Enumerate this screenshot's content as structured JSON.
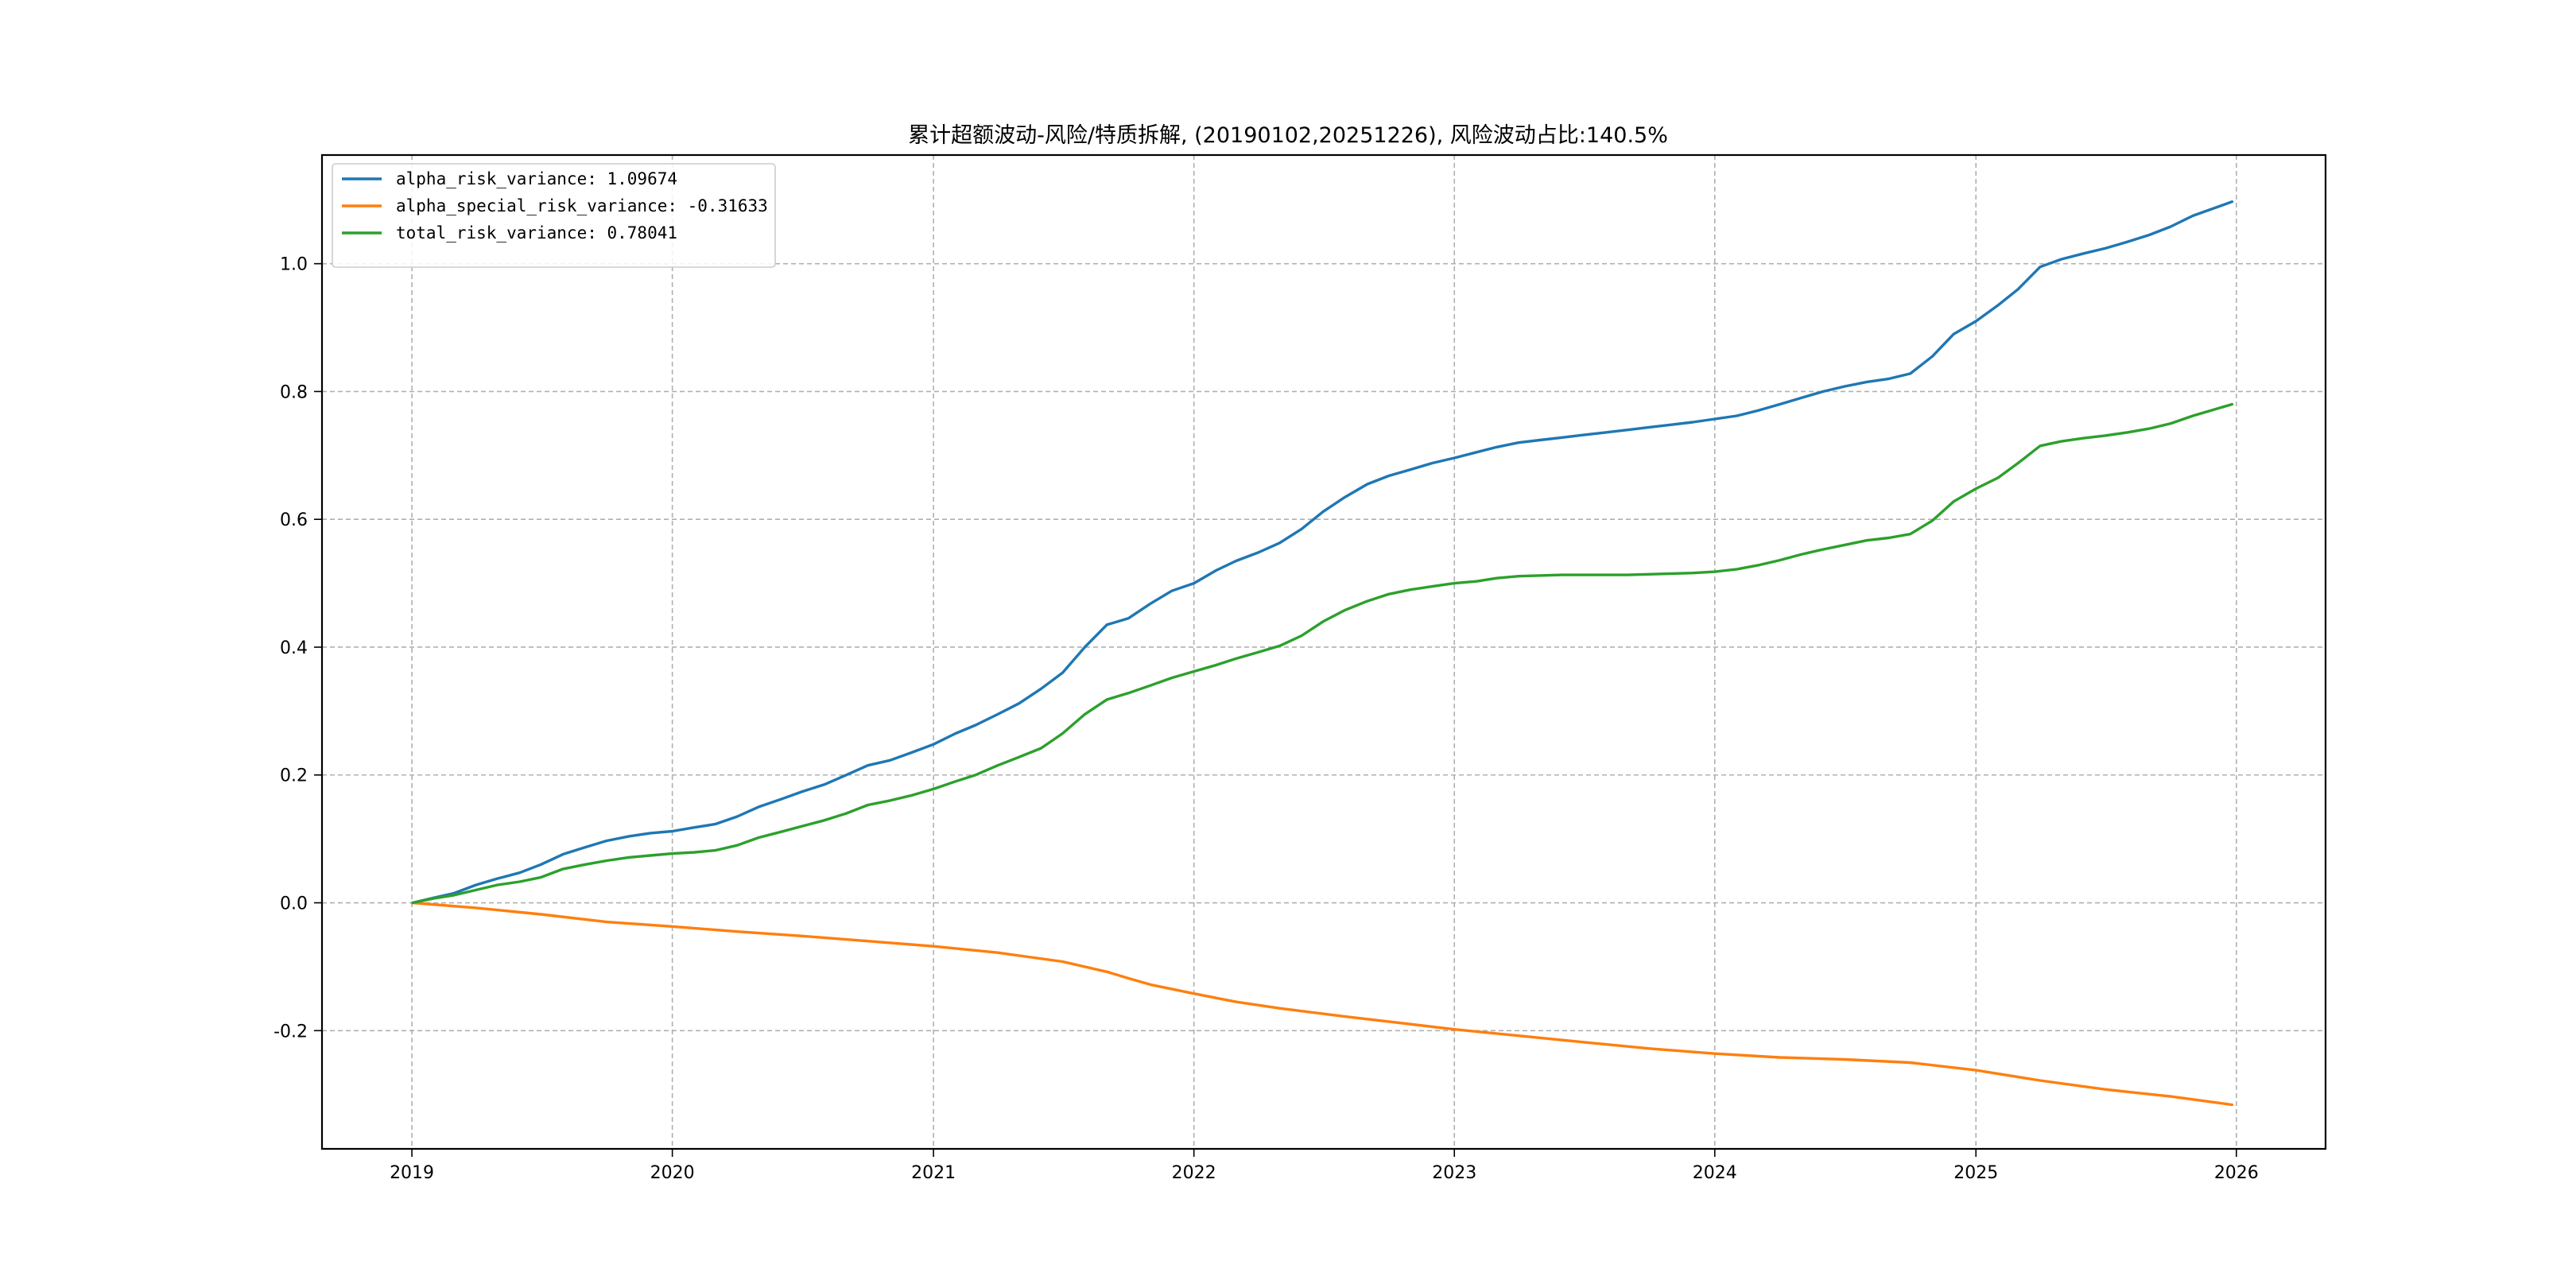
{
  "chart_data": {
    "type": "line",
    "title": "累计超额波动-风险/特质拆解, (20190102,20251226), 风险波动占比:140.5%",
    "xlabel": "",
    "ylabel": "",
    "xlim": [
      "2018-08-28",
      "2026-05-06"
    ],
    "ylim": [
      -0.385,
      1.17
    ],
    "x_ticks": [
      "2019",
      "2020",
      "2021",
      "2022",
      "2023",
      "2024",
      "2025",
      "2026"
    ],
    "y_ticks": [
      "-0.2",
      "0.0",
      "0.2",
      "0.4",
      "0.6",
      "0.8",
      "1.0"
    ],
    "grid": true,
    "legend_position": "upper left",
    "series": [
      {
        "name": "alpha_risk_variance: 1.09674",
        "color": "#1f77b4",
        "points": [
          [
            "2019-01-02",
            0.0
          ],
          [
            "2019-02-01",
            0.008
          ],
          [
            "2019-03-01",
            0.015
          ],
          [
            "2019-04-01",
            0.028
          ],
          [
            "2019-05-01",
            0.038
          ],
          [
            "2019-06-01",
            0.047
          ],
          [
            "2019-07-01",
            0.06
          ],
          [
            "2019-08-01",
            0.076
          ],
          [
            "2019-09-01",
            0.087
          ],
          [
            "2019-10-01",
            0.097
          ],
          [
            "2019-11-01",
            0.104
          ],
          [
            "2019-12-01",
            0.109
          ],
          [
            "2020-01-01",
            0.112
          ],
          [
            "2020-02-01",
            0.118
          ],
          [
            "2020-03-01",
            0.123
          ],
          [
            "2020-04-01",
            0.135
          ],
          [
            "2020-05-01",
            0.15
          ],
          [
            "2020-06-01",
            0.162
          ],
          [
            "2020-07-01",
            0.174
          ],
          [
            "2020-08-01",
            0.185
          ],
          [
            "2020-09-01",
            0.2
          ],
          [
            "2020-10-01",
            0.215
          ],
          [
            "2020-11-01",
            0.223
          ],
          [
            "2020-12-01",
            0.235
          ],
          [
            "2021-01-01",
            0.248
          ],
          [
            "2021-02-01",
            0.265
          ],
          [
            "2021-03-01",
            0.278
          ],
          [
            "2021-04-01",
            0.295
          ],
          [
            "2021-05-01",
            0.312
          ],
          [
            "2021-06-01",
            0.335
          ],
          [
            "2021-07-01",
            0.36
          ],
          [
            "2021-08-01",
            0.4
          ],
          [
            "2021-09-01",
            0.435
          ],
          [
            "2021-10-01",
            0.445
          ],
          [
            "2021-11-01",
            0.468
          ],
          [
            "2021-12-01",
            0.488
          ],
          [
            "2022-01-01",
            0.5
          ],
          [
            "2022-02-01",
            0.52
          ],
          [
            "2022-03-01",
            0.535
          ],
          [
            "2022-04-01",
            0.548
          ],
          [
            "2022-05-01",
            0.563
          ],
          [
            "2022-06-01",
            0.585
          ],
          [
            "2022-07-01",
            0.612
          ],
          [
            "2022-08-01",
            0.635
          ],
          [
            "2022-09-01",
            0.655
          ],
          [
            "2022-10-01",
            0.668
          ],
          [
            "2022-11-01",
            0.678
          ],
          [
            "2022-12-01",
            0.688
          ],
          [
            "2023-01-01",
            0.696
          ],
          [
            "2023-02-01",
            0.705
          ],
          [
            "2023-03-01",
            0.713
          ],
          [
            "2023-04-01",
            0.72
          ],
          [
            "2023-05-01",
            0.724
          ],
          [
            "2023-06-01",
            0.728
          ],
          [
            "2023-07-01",
            0.732
          ],
          [
            "2023-08-01",
            0.736
          ],
          [
            "2023-09-01",
            0.74
          ],
          [
            "2023-10-01",
            0.744
          ],
          [
            "2023-11-01",
            0.748
          ],
          [
            "2023-12-01",
            0.752
          ],
          [
            "2024-01-01",
            0.757
          ],
          [
            "2024-02-01",
            0.762
          ],
          [
            "2024-03-01",
            0.77
          ],
          [
            "2024-04-01",
            0.78
          ],
          [
            "2024-05-01",
            0.79
          ],
          [
            "2024-06-01",
            0.8
          ],
          [
            "2024-07-01",
            0.808
          ],
          [
            "2024-08-01",
            0.815
          ],
          [
            "2024-09-01",
            0.82
          ],
          [
            "2024-10-01",
            0.828
          ],
          [
            "2024-11-01",
            0.855
          ],
          [
            "2024-12-01",
            0.89
          ],
          [
            "2025-01-01",
            0.91
          ],
          [
            "2025-02-01",
            0.935
          ],
          [
            "2025-03-01",
            0.96
          ],
          [
            "2025-04-01",
            0.995
          ],
          [
            "2025-05-01",
            1.007
          ],
          [
            "2025-06-01",
            1.016
          ],
          [
            "2025-07-01",
            1.024
          ],
          [
            "2025-08-01",
            1.034
          ],
          [
            "2025-09-01",
            1.045
          ],
          [
            "2025-10-01",
            1.058
          ],
          [
            "2025-11-01",
            1.075
          ],
          [
            "2025-12-26",
            1.097
          ]
        ]
      },
      {
        "name": "alpha_special_risk_variance: -0.31633",
        "color": "#ff7f0e",
        "points": [
          [
            "2019-01-02",
            0.0
          ],
          [
            "2019-04-01",
            -0.008
          ],
          [
            "2019-07-01",
            -0.018
          ],
          [
            "2019-10-01",
            -0.03
          ],
          [
            "2020-01-01",
            -0.037
          ],
          [
            "2020-04-01",
            -0.045
          ],
          [
            "2020-07-01",
            -0.052
          ],
          [
            "2020-10-01",
            -0.06
          ],
          [
            "2021-01-01",
            -0.068
          ],
          [
            "2021-04-01",
            -0.078
          ],
          [
            "2021-07-01",
            -0.092
          ],
          [
            "2021-09-01",
            -0.108
          ],
          [
            "2021-10-01",
            -0.118
          ],
          [
            "2021-11-01",
            -0.128
          ],
          [
            "2022-01-01",
            -0.142
          ],
          [
            "2022-03-01",
            -0.155
          ],
          [
            "2022-05-01",
            -0.165
          ],
          [
            "2022-08-01",
            -0.178
          ],
          [
            "2022-11-01",
            -0.19
          ],
          [
            "2023-01-01",
            -0.198
          ],
          [
            "2023-04-01",
            -0.208
          ],
          [
            "2023-07-01",
            -0.218
          ],
          [
            "2023-10-01",
            -0.228
          ],
          [
            "2024-01-01",
            -0.236
          ],
          [
            "2024-04-01",
            -0.242
          ],
          [
            "2024-07-01",
            -0.245
          ],
          [
            "2024-10-01",
            -0.25
          ],
          [
            "2025-01-01",
            -0.262
          ],
          [
            "2025-04-01",
            -0.278
          ],
          [
            "2025-07-01",
            -0.292
          ],
          [
            "2025-10-01",
            -0.303
          ],
          [
            "2025-12-26",
            -0.316
          ]
        ]
      },
      {
        "name": "total_risk_variance: 0.78041",
        "color": "#2ca02c",
        "points": [
          [
            "2019-01-02",
            0.0
          ],
          [
            "2019-02-01",
            0.007
          ],
          [
            "2019-03-01",
            0.012
          ],
          [
            "2019-04-01",
            0.02
          ],
          [
            "2019-05-01",
            0.028
          ],
          [
            "2019-06-01",
            0.033
          ],
          [
            "2019-07-01",
            0.04
          ],
          [
            "2019-08-01",
            0.053
          ],
          [
            "2019-09-01",
            0.06
          ],
          [
            "2019-10-01",
            0.066
          ],
          [
            "2019-11-01",
            0.071
          ],
          [
            "2019-12-01",
            0.074
          ],
          [
            "2020-01-01",
            0.077
          ],
          [
            "2020-02-01",
            0.079
          ],
          [
            "2020-03-01",
            0.082
          ],
          [
            "2020-04-01",
            0.09
          ],
          [
            "2020-05-01",
            0.102
          ],
          [
            "2020-06-01",
            0.111
          ],
          [
            "2020-07-01",
            0.12
          ],
          [
            "2020-08-01",
            0.129
          ],
          [
            "2020-09-01",
            0.14
          ],
          [
            "2020-10-01",
            0.153
          ],
          [
            "2020-11-01",
            0.16
          ],
          [
            "2020-12-01",
            0.168
          ],
          [
            "2021-01-01",
            0.178
          ],
          [
            "2021-02-01",
            0.19
          ],
          [
            "2021-03-01",
            0.2
          ],
          [
            "2021-04-01",
            0.215
          ],
          [
            "2021-05-01",
            0.228
          ],
          [
            "2021-06-01",
            0.242
          ],
          [
            "2021-07-01",
            0.265
          ],
          [
            "2021-08-01",
            0.295
          ],
          [
            "2021-09-01",
            0.318
          ],
          [
            "2021-10-01",
            0.328
          ],
          [
            "2021-11-01",
            0.34
          ],
          [
            "2021-12-01",
            0.352
          ],
          [
            "2022-01-01",
            0.362
          ],
          [
            "2022-02-01",
            0.372
          ],
          [
            "2022-03-01",
            0.382
          ],
          [
            "2022-04-01",
            0.392
          ],
          [
            "2022-05-01",
            0.402
          ],
          [
            "2022-06-01",
            0.418
          ],
          [
            "2022-07-01",
            0.44
          ],
          [
            "2022-08-01",
            0.458
          ],
          [
            "2022-09-01",
            0.472
          ],
          [
            "2022-10-01",
            0.483
          ],
          [
            "2022-11-01",
            0.49
          ],
          [
            "2022-12-01",
            0.495
          ],
          [
            "2023-01-01",
            0.5
          ],
          [
            "2023-02-01",
            0.503
          ],
          [
            "2023-03-01",
            0.508
          ],
          [
            "2023-04-01",
            0.511
          ],
          [
            "2023-06-01",
            0.513
          ],
          [
            "2023-09-01",
            0.513
          ],
          [
            "2023-12-01",
            0.516
          ],
          [
            "2024-01-01",
            0.518
          ],
          [
            "2024-02-01",
            0.522
          ],
          [
            "2024-03-01",
            0.528
          ],
          [
            "2024-04-01",
            0.536
          ],
          [
            "2024-05-01",
            0.545
          ],
          [
            "2024-06-01",
            0.553
          ],
          [
            "2024-07-01",
            0.56
          ],
          [
            "2024-08-01",
            0.567
          ],
          [
            "2024-09-01",
            0.571
          ],
          [
            "2024-10-01",
            0.577
          ],
          [
            "2024-11-01",
            0.598
          ],
          [
            "2024-12-01",
            0.628
          ],
          [
            "2025-01-01",
            0.648
          ],
          [
            "2025-02-01",
            0.665
          ],
          [
            "2025-03-01",
            0.688
          ],
          [
            "2025-04-01",
            0.715
          ],
          [
            "2025-05-01",
            0.722
          ],
          [
            "2025-06-01",
            0.727
          ],
          [
            "2025-07-01",
            0.731
          ],
          [
            "2025-08-01",
            0.736
          ],
          [
            "2025-09-01",
            0.742
          ],
          [
            "2025-10-01",
            0.75
          ],
          [
            "2025-11-01",
            0.762
          ],
          [
            "2025-12-26",
            0.78
          ]
        ]
      }
    ]
  }
}
